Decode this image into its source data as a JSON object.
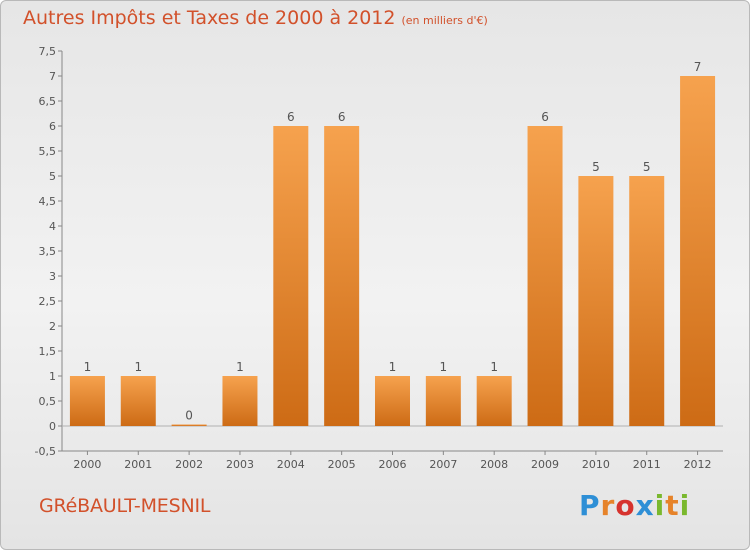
{
  "header": {
    "title": "Autres Impôts et Taxes de 2000 à 2012",
    "unit": "(en milliers d'€)"
  },
  "commune": "GRéBAULT-MESNIL",
  "logo": {
    "letters": [
      "P",
      "r",
      "o",
      "x",
      "i",
      "t",
      "i"
    ],
    "colors": [
      "#2e8fd6",
      "#e6832a",
      "#d6332e",
      "#2e8fd6",
      "#7ab82e",
      "#e6832a",
      "#7ab82e"
    ]
  },
  "colors": {
    "bar_light": "#f6a24e",
    "bar_dark": "#cd6b15",
    "text": "#555555",
    "title": "#d2512b"
  },
  "chart_data": {
    "type": "bar",
    "categories": [
      "2000",
      "2001",
      "2002",
      "2003",
      "2004",
      "2005",
      "2006",
      "2007",
      "2008",
      "2009",
      "2010",
      "2011",
      "2012"
    ],
    "values": [
      1,
      1,
      0,
      1,
      6,
      6,
      1,
      1,
      1,
      6,
      5,
      5,
      7
    ],
    "labels": [
      "1",
      "1",
      "0",
      "1",
      "6",
      "6",
      "1",
      "1",
      "1",
      "6",
      "5",
      "5",
      "7"
    ],
    "ylim": [
      -0.5,
      7.5
    ],
    "yticks": [
      -0.5,
      0,
      0.5,
      1,
      1.5,
      2,
      2.5,
      3,
      3.5,
      4,
      4.5,
      5,
      5.5,
      6,
      6.5,
      7,
      7.5
    ],
    "ytick_labels": [
      "-0,5",
      "0",
      "0,5",
      "1",
      "1,5",
      "2",
      "2,5",
      "3",
      "3,5",
      "4",
      "4,5",
      "5",
      "5,5",
      "6",
      "6,5",
      "7",
      "7,5"
    ],
    "title": "Autres Impôts et Taxes de 2000 à 2012",
    "xlabel": "",
    "ylabel": "",
    "grid": false
  }
}
